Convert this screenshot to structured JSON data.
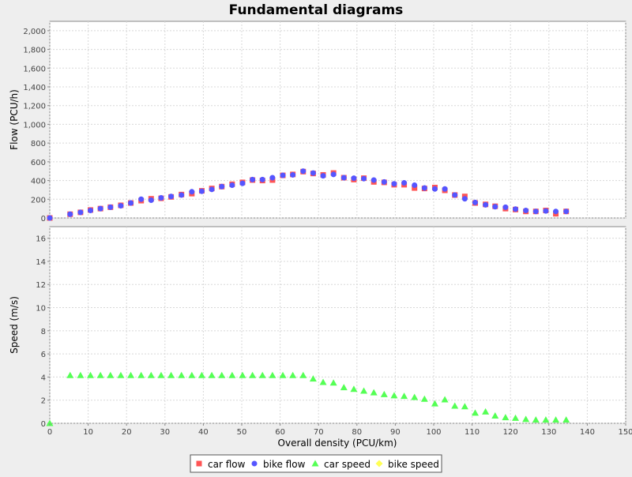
{
  "chart_data": {
    "type": "scatter",
    "title": "Fundamental diagrams",
    "xlabel": "Overall density (PCU/km)",
    "xlim": [
      0,
      150
    ],
    "x_ticks": [
      0,
      10,
      20,
      30,
      40,
      50,
      60,
      70,
      80,
      90,
      100,
      110,
      120,
      130,
      140,
      150
    ],
    "grid": true,
    "legend_position": "bottom",
    "panels": [
      {
        "id": "flow",
        "ylabel": "Flow (PCU/h)",
        "ylim": [
          0,
          2100
        ],
        "y_ticks": [
          0,
          200,
          400,
          600,
          800,
          1000,
          1200,
          1400,
          1600,
          1800,
          2000
        ],
        "y_tick_labels": [
          "0",
          "200",
          "400",
          "600",
          "800",
          "1,000",
          "1,200",
          "1,400",
          "1,600",
          "1,800",
          "2,000"
        ],
        "series": [
          {
            "name": "car flow",
            "marker": "square",
            "color": "#ff5555",
            "points": [
              [
                0,
                0
              ],
              [
                5.3,
                40
              ],
              [
                8,
                60
              ],
              [
                10.6,
                85
              ],
              [
                13.2,
                100
              ],
              [
                15.8,
                115
              ],
              [
                18.5,
                135
              ],
              [
                21.1,
                160
              ],
              [
                23.8,
                185
              ],
              [
                26.4,
                205
              ],
              [
                29,
                210
              ],
              [
                31.6,
                225
              ],
              [
                34.3,
                250
              ],
              [
                37,
                260
              ],
              [
                39.6,
                290
              ],
              [
                42.2,
                315
              ],
              [
                44.8,
                335
              ],
              [
                47.5,
                360
              ],
              [
                50.2,
                380
              ],
              [
                52.8,
                405
              ],
              [
                55.4,
                400
              ],
              [
                58,
                405
              ],
              [
                60.7,
                455
              ],
              [
                63.3,
                465
              ],
              [
                66,
                495
              ],
              [
                68.6,
                475
              ],
              [
                71.2,
                460
              ],
              [
                73.9,
                480
              ],
              [
                76.6,
                430
              ],
              [
                79.2,
                410
              ],
              [
                81.8,
                425
              ],
              [
                84.4,
                385
              ],
              [
                87.1,
                380
              ],
              [
                89.7,
                355
              ],
              [
                92.3,
                355
              ],
              [
                95,
                320
              ],
              [
                97.6,
                315
              ],
              [
                100.3,
                325
              ],
              [
                102.9,
                295
              ],
              [
                105.5,
                245
              ],
              [
                108.1,
                230
              ],
              [
                110.8,
                160
              ],
              [
                113.5,
                145
              ],
              [
                116,
                125
              ],
              [
                118.7,
                100
              ],
              [
                121.3,
                90
              ],
              [
                124,
                70
              ],
              [
                126.6,
                70
              ],
              [
                129.2,
                80
              ],
              [
                131.8,
                45
              ],
              [
                134.5,
                70
              ]
            ]
          },
          {
            "name": "bike flow",
            "marker": "circle",
            "color": "#5555ff",
            "points": [
              [
                0,
                0
              ],
              [
                5.3,
                40
              ],
              [
                8,
                60
              ],
              [
                10.6,
                80
              ],
              [
                13.2,
                100
              ],
              [
                15.8,
                115
              ],
              [
                18.5,
                130
              ],
              [
                21.1,
                160
              ],
              [
                23.8,
                200
              ],
              [
                26.4,
                190
              ],
              [
                29,
                215
              ],
              [
                31.6,
                230
              ],
              [
                34.3,
                245
              ],
              [
                37,
                280
              ],
              [
                39.6,
                285
              ],
              [
                42.2,
                305
              ],
              [
                44.8,
                335
              ],
              [
                47.5,
                350
              ],
              [
                50.2,
                370
              ],
              [
                52.8,
                410
              ],
              [
                55.4,
                410
              ],
              [
                58,
                430
              ],
              [
                60.7,
                455
              ],
              [
                63.3,
                460
              ],
              [
                66,
                500
              ],
              [
                68.6,
                480
              ],
              [
                71.2,
                450
              ],
              [
                73.9,
                465
              ],
              [
                76.6,
                430
              ],
              [
                79.2,
                425
              ],
              [
                81.8,
                420
              ],
              [
                84.4,
                405
              ],
              [
                87.1,
                385
              ],
              [
                89.7,
                365
              ],
              [
                92.3,
                375
              ],
              [
                95,
                350
              ],
              [
                97.6,
                320
              ],
              [
                100.3,
                310
              ],
              [
                102.9,
                310
              ],
              [
                105.5,
                245
              ],
              [
                108.1,
                205
              ],
              [
                110.8,
                165
              ],
              [
                113.5,
                140
              ],
              [
                116,
                120
              ],
              [
                118.7,
                115
              ],
              [
                121.3,
                95
              ],
              [
                124,
                80
              ],
              [
                126.6,
                70
              ],
              [
                129.2,
                75
              ],
              [
                131.8,
                70
              ],
              [
                134.5,
                70
              ]
            ]
          }
        ]
      },
      {
        "id": "speed",
        "ylabel": "Speed (m/s)",
        "ylim": [
          0,
          17
        ],
        "y_ticks": [
          0,
          2,
          4,
          6,
          8,
          10,
          12,
          14,
          16
        ],
        "y_tick_labels": [
          "0",
          "2",
          "4",
          "6",
          "8",
          "10",
          "12",
          "14",
          "16"
        ],
        "series": [
          {
            "name": "car speed",
            "marker": "triangle",
            "color": "#55ff55",
            "points": [
              [
                0,
                0
              ],
              [
                5.3,
                4.15
              ],
              [
                8,
                4.15
              ],
              [
                10.6,
                4.15
              ],
              [
                13.2,
                4.15
              ],
              [
                15.8,
                4.15
              ],
              [
                18.5,
                4.15
              ],
              [
                21.1,
                4.15
              ],
              [
                23.8,
                4.15
              ],
              [
                26.4,
                4.15
              ],
              [
                29,
                4.15
              ],
              [
                31.6,
                4.15
              ],
              [
                34.3,
                4.15
              ],
              [
                37,
                4.15
              ],
              [
                39.6,
                4.15
              ],
              [
                42.2,
                4.15
              ],
              [
                44.8,
                4.15
              ],
              [
                47.5,
                4.15
              ],
              [
                50.2,
                4.15
              ],
              [
                52.8,
                4.15
              ],
              [
                55.4,
                4.15
              ],
              [
                58,
                4.15
              ],
              [
                60.7,
                4.15
              ],
              [
                63.3,
                4.15
              ],
              [
                66,
                4.15
              ],
              [
                68.6,
                3.85
              ],
              [
                71.2,
                3.55
              ],
              [
                73.9,
                3.5
              ],
              [
                76.6,
                3.1
              ],
              [
                79.2,
                2.95
              ],
              [
                81.8,
                2.8
              ],
              [
                84.4,
                2.65
              ],
              [
                87.1,
                2.5
              ],
              [
                89.7,
                2.4
              ],
              [
                92.3,
                2.35
              ],
              [
                95,
                2.25
              ],
              [
                97.6,
                2.1
              ],
              [
                100.3,
                1.7
              ],
              [
                102.9,
                2.05
              ],
              [
                105.5,
                1.5
              ],
              [
                108.1,
                1.45
              ],
              [
                110.8,
                0.9
              ],
              [
                113.5,
                1.0
              ],
              [
                116,
                0.65
              ],
              [
                118.7,
                0.5
              ],
              [
                121.3,
                0.45
              ],
              [
                124,
                0.35
              ],
              [
                126.6,
                0.3
              ],
              [
                129.2,
                0.3
              ],
              [
                131.8,
                0.3
              ],
              [
                134.5,
                0.3
              ]
            ]
          },
          {
            "name": "bike speed",
            "marker": "diamond",
            "color": "#ffff55",
            "points": []
          }
        ]
      }
    ]
  }
}
